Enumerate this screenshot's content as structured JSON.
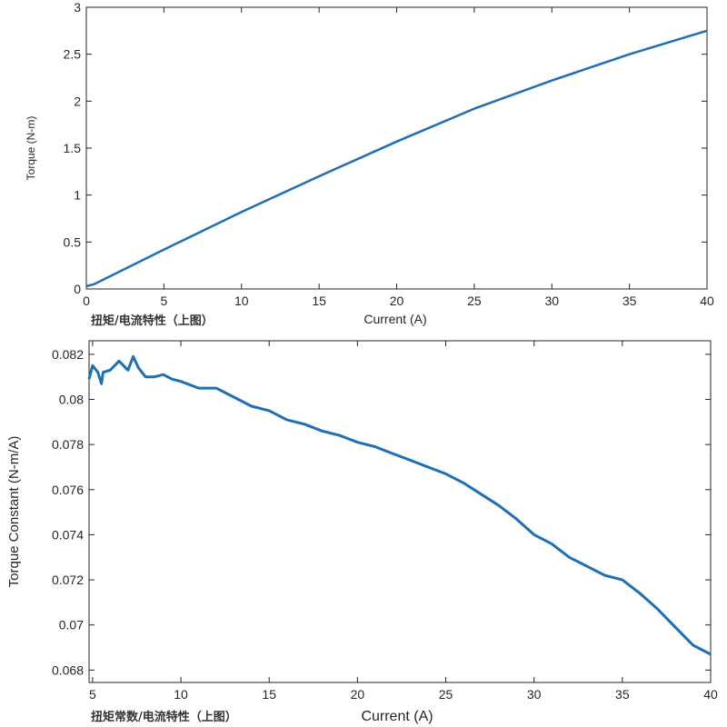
{
  "chart_data": [
    {
      "type": "line",
      "title": "",
      "caption": "扭矩/电流特性（上图）",
      "xlabel": "Current (A)",
      "ylabel": "Torque (N-m)",
      "xlim": [
        0,
        40
      ],
      "ylim": [
        0,
        3
      ],
      "xticks": [
        "0",
        "5",
        "10",
        "15",
        "20",
        "25",
        "30",
        "35",
        "40"
      ],
      "yticks": [
        "0",
        "0.5",
        "1",
        "1.5",
        "2",
        "2.5",
        "3"
      ],
      "grid": false,
      "color": "#1f6fb4",
      "x": [
        0,
        0.5,
        5,
        10,
        15,
        20,
        25,
        30,
        35,
        40
      ],
      "y": [
        0.03,
        0.05,
        0.42,
        0.82,
        1.2,
        1.57,
        1.92,
        2.22,
        2.5,
        2.75
      ]
    },
    {
      "type": "line",
      "title": "",
      "caption": "扭矩常数/电流特性（上图）",
      "xlabel": "Current (A)",
      "ylabel": "Torque Constant (N-m/A)",
      "xlim": [
        4.8,
        40
      ],
      "ylim": [
        0.06745,
        0.0826
      ],
      "xticks": [
        "5",
        "10",
        "15",
        "20",
        "25",
        "30",
        "35",
        "40"
      ],
      "yticks": [
        "0.068",
        "0.07",
        "0.072",
        "0.074",
        "0.076",
        "0.078",
        "0.08",
        "0.082"
      ],
      "grid": false,
      "color": "#1f6fb4",
      "x": [
        4.8,
        5,
        5.3,
        5.5,
        5.6,
        6,
        6.5,
        7,
        7.3,
        7.6,
        8,
        8.5,
        9,
        9.5,
        10,
        11,
        12,
        13,
        14,
        15,
        16,
        17,
        18,
        19,
        20,
        21,
        22,
        23,
        24,
        25,
        26,
        27,
        28,
        29,
        30,
        31,
        32,
        33,
        34,
        35,
        36,
        37,
        38,
        39,
        40
      ],
      "y": [
        0.0809,
        0.0815,
        0.0812,
        0.0807,
        0.0812,
        0.0813,
        0.0817,
        0.0813,
        0.0819,
        0.0814,
        0.081,
        0.081,
        0.0811,
        0.0809,
        0.0808,
        0.0805,
        0.0805,
        0.0801,
        0.0797,
        0.0795,
        0.0791,
        0.0789,
        0.0786,
        0.0784,
        0.0781,
        0.0779,
        0.0776,
        0.0773,
        0.077,
        0.0767,
        0.0763,
        0.0758,
        0.0753,
        0.0747,
        0.074,
        0.0736,
        0.073,
        0.0726,
        0.0722,
        0.072,
        0.0714,
        0.0707,
        0.0699,
        0.0691,
        0.0687
      ]
    }
  ]
}
